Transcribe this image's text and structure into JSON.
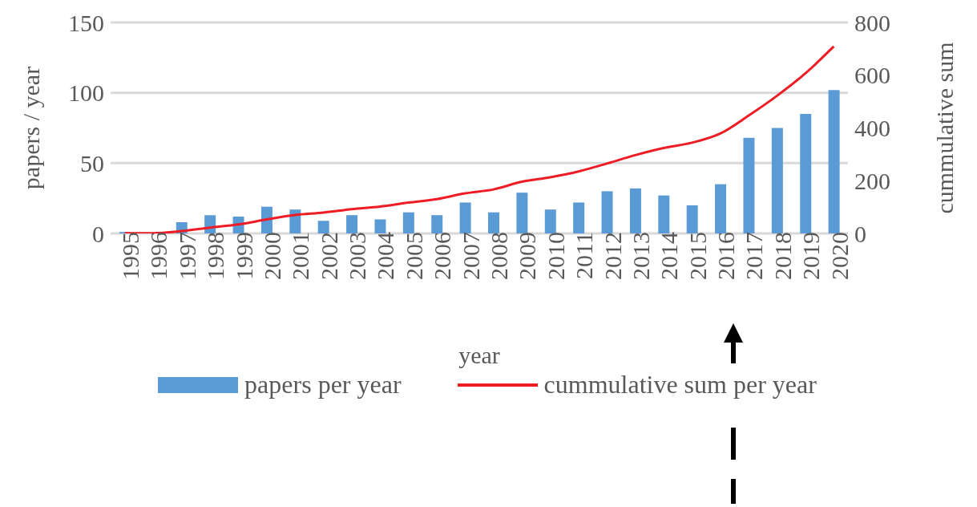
{
  "chart_data": {
    "type": "bar",
    "xlabel": "year",
    "ylabel": "papers / year",
    "y2label": "cummulative sum",
    "categories": [
      "1995",
      "1996",
      "1997",
      "1998",
      "1999",
      "2000",
      "2001",
      "2002",
      "2003",
      "2004",
      "2005",
      "2006",
      "2007",
      "2008",
      "2009",
      "2010",
      "2011",
      "2012",
      "2013",
      "2014",
      "2015",
      "2016",
      "2017",
      "2018",
      "2019",
      "2020"
    ],
    "series": [
      {
        "name": "papers per year",
        "color": "#5b9bd5",
        "values": [
          1,
          0,
          8,
          13,
          12,
          19,
          17,
          9,
          13,
          10,
          15,
          13,
          22,
          15,
          29,
          17,
          22,
          30,
          32,
          27,
          20,
          35,
          68,
          75,
          85,
          102
        ]
      },
      {
        "name": "cummulative sum per year",
        "type": "line",
        "axis": "y2",
        "color": "#ee1c25",
        "values": [
          1,
          1,
          9,
          22,
          34,
          53,
          70,
          79,
          92,
          102,
          117,
          130,
          152,
          167,
          196,
          213,
          235,
          265,
          297,
          324,
          344,
          379,
          447,
          522,
          607,
          709
        ]
      }
    ],
    "ylim": [
      0,
      150
    ],
    "yticks": [
      0,
      50,
      100,
      150
    ],
    "y2lim": [
      0,
      800
    ],
    "y2ticks": [
      0,
      200,
      400,
      600,
      800
    ],
    "grid": "y",
    "legend": "bottom",
    "marker": "none"
  }
}
